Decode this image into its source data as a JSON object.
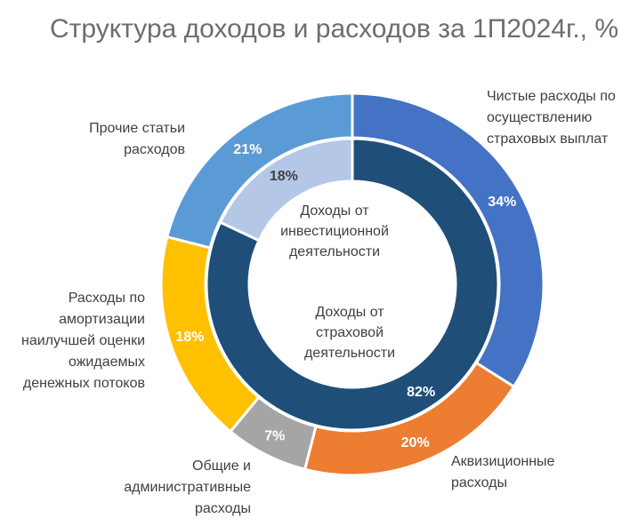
{
  "title": "Структура доходов и расходов за 1П2024г., %",
  "chart_data": {
    "type": "pie",
    "style": "nested donut",
    "outer_ring": {
      "slices": [
        {
          "label": "Чистые расходы по\nосуществлению\nстраховых выплат",
          "value": 34,
          "value_label": "34%",
          "color": "#4472C4"
        },
        {
          "label": "Аквизиционные\nрасходы",
          "value": 20,
          "value_label": "20%",
          "color": "#ED7D31"
        },
        {
          "label": "Общие и\nадминистративные\nрасходы",
          "value": 7,
          "value_label": "7%",
          "color": "#A5A5A5"
        },
        {
          "label": "Расходы по\nамортизации\nнаилучшей оценки\nожидаемых\nденежных потоков",
          "value": 18,
          "value_label": "18%",
          "color": "#FFC000"
        },
        {
          "label": "Прочие статьи\nрасходов",
          "value": 21,
          "value_label": "21%",
          "color": "#5B9BD5"
        }
      ]
    },
    "inner_ring": {
      "slices": [
        {
          "label": "Доходы от\nстраховой\nдеятельности",
          "value": 82,
          "value_label": "82%",
          "color": "#1F4E79"
        },
        {
          "label": "Доходы от\nинвестиционной\nдеятельности",
          "value": 18,
          "value_label": "18%",
          "color": "#B4C7E7"
        }
      ]
    }
  }
}
